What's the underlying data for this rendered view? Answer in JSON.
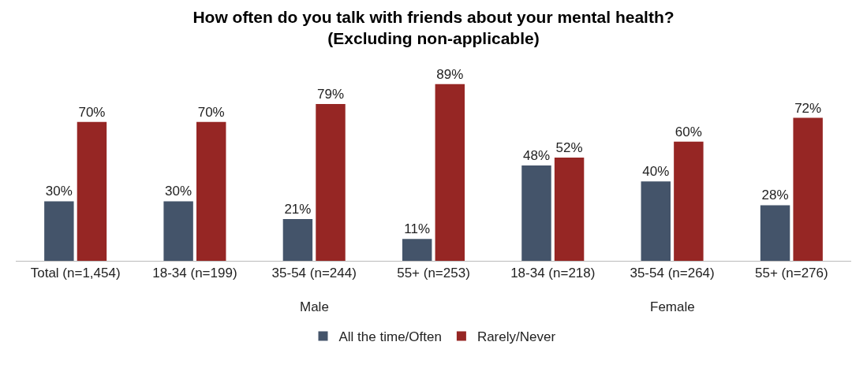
{
  "chart_data": {
    "type": "bar",
    "title": "How often do you talk with friends about your mental health?\n(Excluding non-applicable)",
    "categories": [
      "Total (n=1,454)",
      "18-34 (n=199)",
      "35-54 (n=244)",
      "55+ (n=253)",
      "18-34 (n=218)",
      "35-54 (n=264)",
      "55+ (n=276)"
    ],
    "series": [
      {
        "name": "All the time/Often",
        "color": "#44546a",
        "values": [
          30,
          30,
          21,
          11,
          48,
          40,
          28
        ],
        "value_labels": [
          "30%",
          "30%",
          "21%",
          "11%",
          "48%",
          "40%",
          "28%"
        ]
      },
      {
        "name": "Rarely/Never",
        "color": "#962624",
        "values": [
          70,
          70,
          79,
          89,
          52,
          60,
          72
        ],
        "value_labels": [
          "70%",
          "70%",
          "79%",
          "89%",
          "52%",
          "60%",
          "72%"
        ]
      }
    ],
    "annotations": [
      "Male",
      "Female"
    ],
    "legend": "bottom",
    "grid": false
  }
}
